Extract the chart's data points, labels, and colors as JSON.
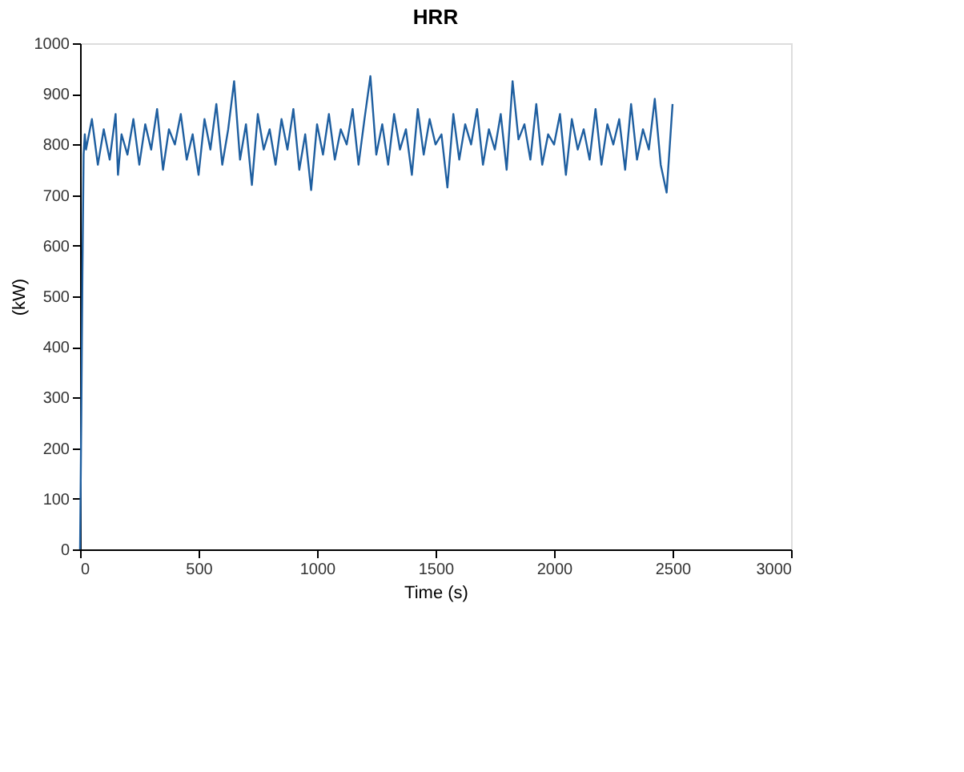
{
  "chart_data": {
    "type": "line",
    "title": "HRR",
    "xlabel": "Time (s)",
    "ylabel": "(kW)",
    "xlim": [
      0,
      3000
    ],
    "xticks": [
      0,
      500,
      1000,
      1500,
      2000,
      2500,
      3000
    ],
    "ylim": [
      0,
      1000
    ],
    "yticks": [
      0,
      100,
      200,
      300,
      400,
      500,
      600,
      700,
      800,
      900,
      1000
    ],
    "grid": false,
    "marker": "none",
    "line_style": "solid",
    "series": [
      {
        "color": "#1f5fa0",
        "x": [
          0,
          5,
          10,
          15,
          20,
          25,
          50,
          75,
          100,
          125,
          150,
          160,
          175,
          200,
          225,
          250,
          275,
          300,
          325,
          350,
          375,
          400,
          425,
          450,
          475,
          500,
          525,
          550,
          575,
          600,
          625,
          650,
          675,
          700,
          725,
          750,
          775,
          800,
          825,
          850,
          875,
          900,
          925,
          950,
          975,
          1000,
          1025,
          1050,
          1075,
          1100,
          1125,
          1150,
          1175,
          1200,
          1225,
          1250,
          1275,
          1300,
          1325,
          1350,
          1375,
          1400,
          1425,
          1450,
          1475,
          1500,
          1525,
          1550,
          1575,
          1600,
          1625,
          1650,
          1675,
          1700,
          1725,
          1750,
          1775,
          1800,
          1825,
          1850,
          1875,
          1900,
          1925,
          1950,
          1975,
          2000,
          2025,
          2050,
          2075,
          2100,
          2125,
          2150,
          2175,
          2200,
          2225,
          2250,
          2275,
          2300,
          2325,
          2350,
          2375,
          2400,
          2425,
          2450,
          2475,
          2500
        ],
        "values": [
          0,
          250,
          550,
          780,
          820,
          790,
          850,
          760,
          830,
          770,
          860,
          740,
          820,
          780,
          850,
          760,
          840,
          790,
          870,
          750,
          830,
          800,
          860,
          770,
          820,
          740,
          850,
          790,
          880,
          760,
          830,
          925,
          770,
          840,
          720,
          860,
          790,
          830,
          760,
          850,
          790,
          870,
          750,
          820,
          710,
          840,
          780,
          860,
          770,
          830,
          800,
          870,
          760,
          850,
          935,
          780,
          840,
          760,
          860,
          790,
          830,
          740,
          870,
          780,
          850,
          800,
          820,
          715,
          860,
          770,
          840,
          800,
          870,
          760,
          830,
          790,
          860,
          750,
          925,
          810,
          840,
          770,
          880,
          760,
          820,
          800,
          860,
          740,
          850,
          790,
          830,
          770,
          870,
          760,
          840,
          800,
          850,
          750,
          880,
          770,
          830,
          790,
          890,
          760,
          705,
          880
        ]
      }
    ]
  }
}
